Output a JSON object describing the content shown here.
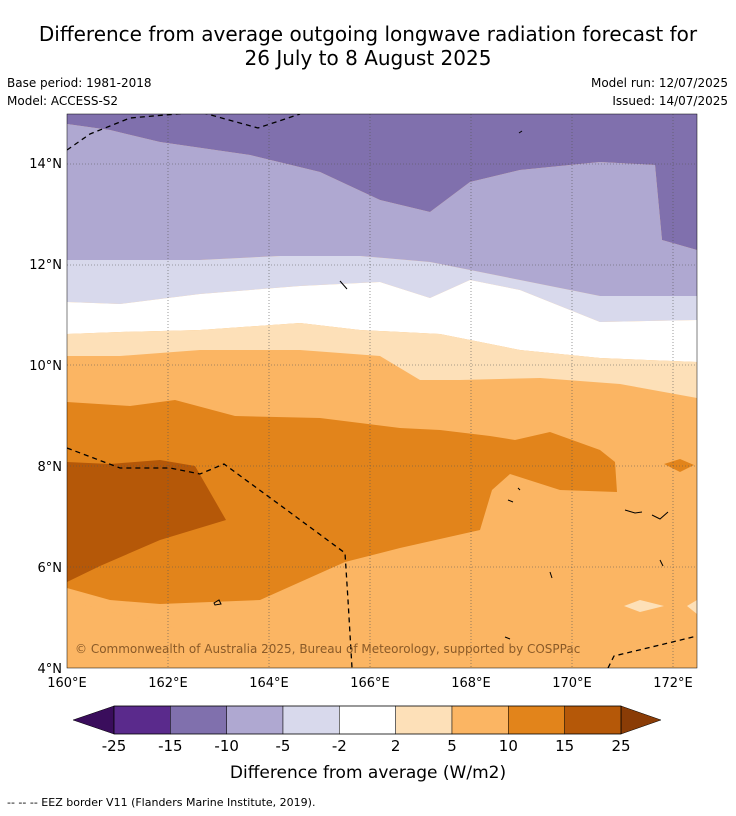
{
  "title_line1": "Difference from average outgoing longwave radiation forecast for",
  "title_line2": "26 July to 8 August 2025",
  "meta": {
    "base_period": "Base period: 1981-2018",
    "model": "Model: ACCESS-S2",
    "model_run": "Model run: 12/07/2025",
    "issued": "Issued: 14/07/2025"
  },
  "lat_ticks": [
    "14°N",
    "12°N",
    "10°N",
    "8°N",
    "6°N",
    "4°N"
  ],
  "lon_ticks": [
    "160°E",
    "162°E",
    "164°E",
    "166°E",
    "168°E",
    "170°E",
    "172°E"
  ],
  "copyright": "© Commonwealth of Australia 2025, Bureau of Meteorology, supported by COSPPac",
  "colorbar": {
    "labels": [
      "-25",
      "-15",
      "-10",
      "-5",
      "-2",
      "2",
      "5",
      "10",
      "15",
      "25"
    ],
    "colors": [
      "#5a2a8c",
      "#8070ad",
      "#afa8d1",
      "#d8d9ec",
      "#ffffff",
      "#fde0b8",
      "#fbb563",
      "#e2841b",
      "#b55808"
    ],
    "end_low_color": "#3a0d5c",
    "end_high_color": "#8a3c06",
    "title": "Difference from average (W/m2)"
  },
  "footer": "--  --  -- EEZ border V11 (Flanders Marine Institute, 2019)."
}
